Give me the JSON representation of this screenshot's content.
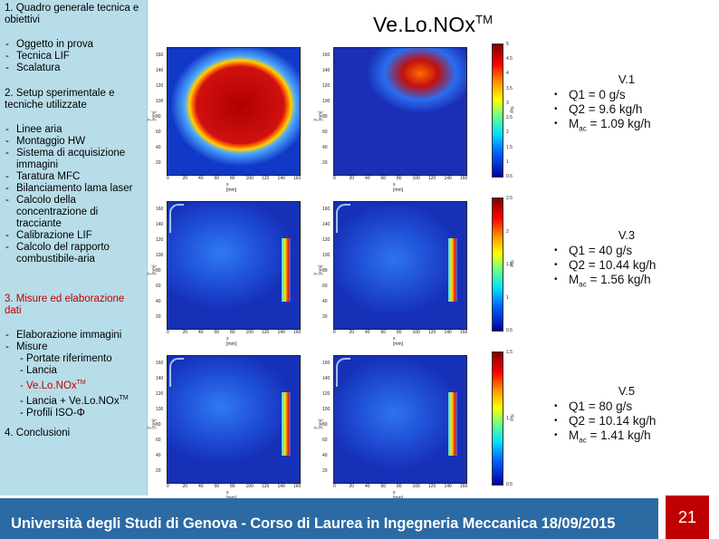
{
  "sidebar": {
    "sec1_title": "1. Quadro generale tecnica e obiettivi",
    "sec1_items": [
      "Oggetto in prova",
      "Tecnica LIF",
      "Scalatura"
    ],
    "sec2_title": "2. Setup sperimentale e tecniche utilizzate",
    "sec2_items": [
      "Linee aria",
      "Montaggio HW",
      "Sistema di acquisizione immagini",
      "Taratura MFC",
      "Bilanciamento lama laser",
      "Calcolo della concentrazione di tracciante",
      "Calibrazione LIF",
      "Calcolo del rapporto combustibile-aria"
    ],
    "sec3_title": "3. Misure ed elaborazione dati",
    "sec3_item1": "Elaborazione immagini",
    "sec3_item2": "Misure",
    "sec3_sub": [
      "- Portate riferimento",
      "- Lancia"
    ],
    "sec3_sub_red": "- Ve.Lo.NOx",
    "sec3_sub_red_sup": "TM",
    "sec3_sub2": "- Lancia + Ve.Lo.NOx",
    "sec3_sub2_sup": "TM",
    "sec3_sub3": "- Profili ISO-Φ",
    "sec4_title": "4. Conclusioni"
  },
  "title": {
    "main": "Ve.Lo.NOx",
    "sup": "TM"
  },
  "axes": {
    "x_label": "x [mm]",
    "y_label": "y [mm]",
    "x_ticks": [
      "0",
      "20",
      "40",
      "60",
      "80",
      "100",
      "120",
      "140",
      "160"
    ],
    "y_ticks": [
      "160",
      "140",
      "120",
      "100",
      "80",
      "60",
      "40",
      "20"
    ],
    "cb_label": "Phi"
  },
  "colorbars": [
    {
      "ticks": [
        "5",
        "4.5",
        "4",
        "3.5",
        "3",
        "2.5",
        "2",
        "1.5",
        "1",
        "0.5"
      ]
    },
    {
      "ticks": [
        "2.5",
        "2",
        "1.5",
        "1",
        "0.5"
      ]
    },
    {
      "ticks": [
        "1.5",
        "1",
        "0.5"
      ]
    }
  ],
  "cases": [
    {
      "label": "V.1",
      "q1": "Q1 = 0 g/s",
      "q2": "Q2 = 9.6 kg/h",
      "mac_pre": "M",
      "mac_sub": "ac",
      "mac_post": " = 1.09 kg/h"
    },
    {
      "label": "V.3",
      "q1": "Q1 = 40 g/s",
      "q2": "Q2 = 10.44 kg/h",
      "mac_pre": "M",
      "mac_sub": "ac",
      "mac_post": " = 1.56 kg/h"
    },
    {
      "label": "V.5",
      "q1": "Q1 = 80 g/s",
      "q2": "Q2 = 10.14 kg/h",
      "mac_pre": "M",
      "mac_sub": "ac",
      "mac_post": " = 1.41 kg/h"
    }
  ],
  "footer": {
    "text": "Università degli Studi di Genova - Corso di Laurea in Ingegneria Meccanica  18/09/2015",
    "page": "21"
  }
}
